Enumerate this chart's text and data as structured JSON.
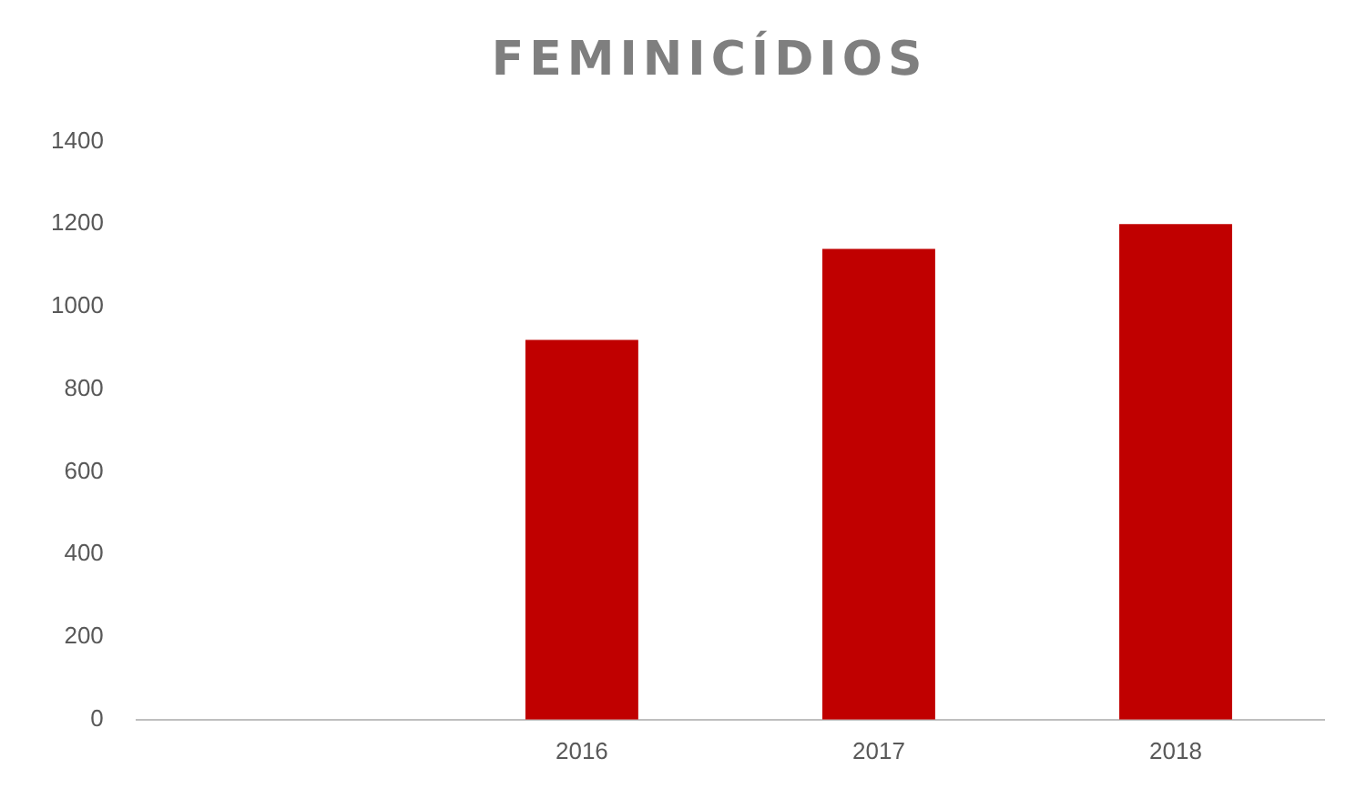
{
  "chart_data": {
    "type": "bar",
    "title": "FEMINICÍDIOS",
    "categories": [
      null,
      "2016",
      "2017",
      "2018"
    ],
    "values": [
      null,
      920,
      1140,
      1200
    ],
    "color": "#c00000",
    "ylim": [
      0,
      1400
    ],
    "yticks": [
      0,
      200,
      400,
      600,
      800,
      1000,
      1200,
      1400
    ],
    "grid": false,
    "legend": false
  }
}
